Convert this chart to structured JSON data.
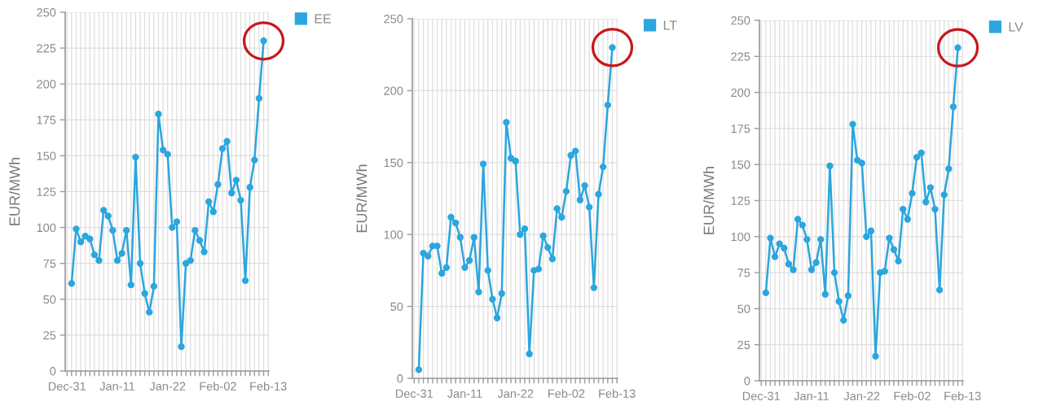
{
  "chart_data": [
    {
      "type": "line",
      "ylabel": "EUR/MWh",
      "legend": "top right",
      "grid": true,
      "marker": "circle",
      "line_style": "solid",
      "categories": [
        "Dec-31",
        null,
        null,
        null,
        null,
        null,
        null,
        null,
        null,
        null,
        null,
        "Jan-11",
        null,
        null,
        null,
        null,
        null,
        null,
        null,
        null,
        null,
        null,
        "Jan-22",
        null,
        null,
        null,
        null,
        null,
        null,
        null,
        null,
        null,
        null,
        "Feb-02",
        null,
        null,
        null,
        null,
        null,
        null,
        null,
        null,
        null,
        null,
        "Feb-13"
      ],
      "series": [
        {
          "name": "EE",
          "color": "#2ba6de",
          "values": [
            null,
            61,
            99,
            90,
            94,
            92,
            81,
            77,
            112,
            108,
            98,
            77,
            82,
            98,
            60,
            149,
            75,
            54,
            41,
            59,
            179,
            154,
            151,
            100,
            104,
            17,
            75,
            77,
            98,
            91,
            83,
            118,
            111,
            130,
            155,
            160,
            124,
            133,
            119,
            63,
            128,
            147,
            190,
            230,
            null
          ]
        }
      ],
      "ylim": [
        0,
        250
      ],
      "yticks": [
        0,
        25,
        50,
        75,
        100,
        125,
        150,
        175,
        200,
        225,
        250
      ]
    },
    {
      "type": "line",
      "ylabel": "EUR/MWh",
      "legend": "top right",
      "grid": true,
      "marker": "circle",
      "line_style": "solid",
      "categories": [
        "Dec-31",
        null,
        null,
        null,
        null,
        null,
        null,
        null,
        null,
        null,
        null,
        "Jan-11",
        null,
        null,
        null,
        null,
        null,
        null,
        null,
        null,
        null,
        null,
        "Jan-22",
        null,
        null,
        null,
        null,
        null,
        null,
        null,
        null,
        null,
        null,
        "Feb-02",
        null,
        null,
        null,
        null,
        null,
        null,
        null,
        null,
        null,
        null,
        "Feb-13"
      ],
      "series": [
        {
          "name": "LT",
          "color": "#2ba6de",
          "values": [
            null,
            6,
            87,
            85,
            92,
            92,
            73,
            77,
            112,
            108,
            98,
            77,
            82,
            98,
            60,
            149,
            75,
            55,
            42,
            59,
            178,
            153,
            151,
            100,
            104,
            17,
            75,
            76,
            99,
            91,
            83,
            118,
            112,
            130,
            155,
            158,
            124,
            134,
            119,
            63,
            128,
            147,
            190,
            230,
            null
          ]
        }
      ],
      "ylim": [
        0,
        250
      ],
      "yticks": [
        0,
        50,
        100,
        150,
        200,
        250
      ]
    },
    {
      "type": "line",
      "ylabel": "EUR/MWh",
      "legend": "top right",
      "grid": true,
      "marker": "circle",
      "line_style": "solid",
      "categories": [
        "Dec-31",
        null,
        null,
        null,
        null,
        null,
        null,
        null,
        null,
        null,
        null,
        "Jan-11",
        null,
        null,
        null,
        null,
        null,
        null,
        null,
        null,
        null,
        null,
        "Jan-22",
        null,
        null,
        null,
        null,
        null,
        null,
        null,
        null,
        null,
        null,
        "Feb-02",
        null,
        null,
        null,
        null,
        null,
        null,
        null,
        null,
        null,
        null,
        "Feb-13"
      ],
      "series": [
        {
          "name": "LV",
          "color": "#2ba6de",
          "values": [
            null,
            61,
            99,
            86,
            95,
            92,
            81,
            77,
            112,
            108,
            98,
            77,
            82,
            98,
            60,
            149,
            75,
            55,
            42,
            59,
            178,
            153,
            151,
            100,
            104,
            17,
            75,
            76,
            99,
            91,
            83,
            119,
            112,
            130,
            155,
            158,
            124,
            134,
            119,
            63,
            129,
            147,
            190,
            231,
            null
          ]
        }
      ],
      "ylim": [
        0,
        250
      ],
      "yticks": [
        0,
        25,
        50,
        75,
        100,
        125,
        150,
        175,
        200,
        225,
        250
      ]
    }
  ]
}
